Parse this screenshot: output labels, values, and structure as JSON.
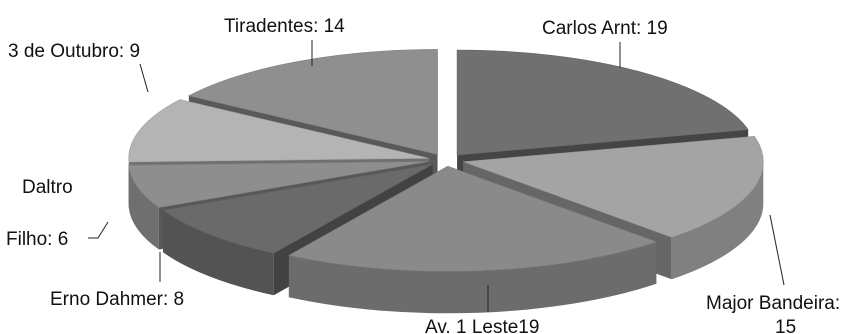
{
  "chart_data": {
    "type": "pie",
    "variant": "3d-exploded",
    "title": "",
    "legend": "none",
    "slices": [
      {
        "label": "Carlos Arnt",
        "value": 19,
        "display": "Carlos Arnt: 19",
        "color": "#707070"
      },
      {
        "label": "Major Bandeira",
        "value": 15,
        "display": "Major Bandeira:",
        "display_line2": "15",
        "color": "#a4a4a4"
      },
      {
        "label": "Av. 1 Leste",
        "value": 19,
        "display": "Av. 1 Leste19",
        "color": "#8a8a8a"
      },
      {
        "label": "Erno Dahmer",
        "value": 8,
        "display": "Erno Dahmer: 8",
        "color": "#6a6a6a"
      },
      {
        "label": "Daltro Filho",
        "value": 6,
        "display": "Daltro",
        "display_line2": "Filho: 6",
        "color": "#8e8e8e"
      },
      {
        "label": "3 de Outubro",
        "value": 9,
        "display": "3 de Outubro: 9",
        "color": "#b4b4b4"
      },
      {
        "label": "Tiradentes",
        "value": 14,
        "display": "Tiradentes: 14",
        "color": "#8f8f8f"
      }
    ]
  }
}
